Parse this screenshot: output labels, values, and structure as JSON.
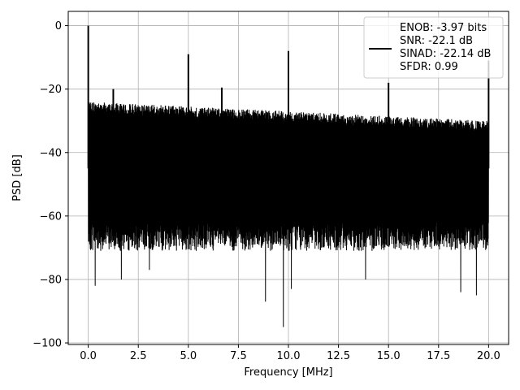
{
  "chart_data": {
    "type": "line",
    "title": "",
    "xlabel": "Frequency [MHz]",
    "ylabel": "PSD [dB]",
    "xlim": [
      -1.0,
      21.0
    ],
    "ylim": [
      -100.5,
      4.5
    ],
    "xticks": [
      0.0,
      2.5,
      5.0,
      7.5,
      10.0,
      12.5,
      15.0,
      17.5,
      20.0
    ],
    "xtick_labels": [
      "0.0",
      "2.5",
      "5.0",
      "7.5",
      "10.0",
      "12.5",
      "15.0",
      "17.5",
      "20.0"
    ],
    "yticks": [
      0,
      -20,
      -40,
      -60,
      -80,
      -100
    ],
    "ytick_labels": [
      "0",
      "−20",
      "−40",
      "−60",
      "−80",
      "−100"
    ],
    "grid": true,
    "legend_position": "upper-right",
    "series": [
      {
        "name": "ENOB: -3.97 bits\nSNR: -22.1 dB\nSINAD: -22.14 dB\nSFDR: 0.99",
        "color": "#000000",
        "noise_floor_top": -24.0,
        "noise_floor_top_end": -30.0,
        "noise_floor_bottom_typical": -66.0,
        "x_start": 0.0,
        "x_end": 20.0,
        "peaks": [
          {
            "x": 0.0,
            "y": 0.0
          },
          {
            "x": 1.25,
            "y": -20.0
          },
          {
            "x": 5.0,
            "y": -9.0
          },
          {
            "x": 6.67,
            "y": -19.5
          },
          {
            "x": 10.0,
            "y": -8.0
          },
          {
            "x": 15.0,
            "y": -18.0
          },
          {
            "x": 20.0,
            "y": -11.0
          }
        ],
        "dips": [
          {
            "x": 0.35,
            "y": -82.0
          },
          {
            "x": 1.65,
            "y": -80.0
          },
          {
            "x": 3.05,
            "y": -77.0
          },
          {
            "x": 8.85,
            "y": -87.0
          },
          {
            "x": 9.75,
            "y": -95.0
          },
          {
            "x": 10.15,
            "y": -83.0
          },
          {
            "x": 13.85,
            "y": -80.0
          },
          {
            "x": 18.6,
            "y": -84.0
          },
          {
            "x": 19.4,
            "y": -85.0
          }
        ]
      }
    ]
  }
}
